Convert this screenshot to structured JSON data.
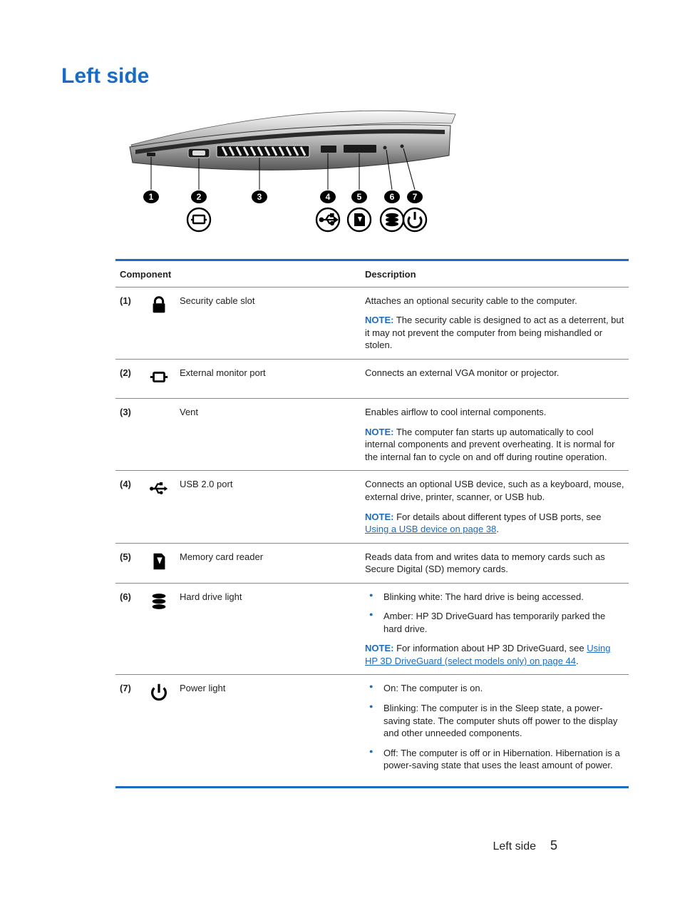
{
  "colors": {
    "heading": "#1a6bc4",
    "note_label": "#1a6bc4",
    "link": "#1a6bc4",
    "table_border_heavy": "#1a6bc4",
    "bullet": "#1a6bc4",
    "text": "#222222"
  },
  "title": "Left side",
  "diagram_callouts": [
    "1",
    "2",
    "3",
    "4",
    "5",
    "6",
    "7"
  ],
  "table": {
    "headers": {
      "component": "Component",
      "description": "Description"
    },
    "rows": [
      {
        "num": "(1)",
        "icon": "lock",
        "name": "Security cable slot",
        "desc": "Attaches an optional security cable to the computer.",
        "note": "The security cable is designed to act as a deterrent, but it may not prevent the computer from being mishandled or stolen."
      },
      {
        "num": "(2)",
        "icon": "monitor",
        "name": "External monitor port",
        "desc": "Connects an external VGA monitor or projector."
      },
      {
        "num": "(3)",
        "icon": "",
        "name": "Vent",
        "desc": "Enables airflow to cool internal components.",
        "note": "The computer fan starts up automatically to cool internal components and prevent overheating. It is normal for the internal fan to cycle on and off during routine operation."
      },
      {
        "num": "(4)",
        "icon": "usb",
        "name": "USB 2.0 port",
        "desc": "Connects an optional USB device, such as a keyboard, mouse, external drive, printer, scanner, or USB hub.",
        "note_pre": "For details about different types of USB ports, see ",
        "note_link": "Using a USB device on page 38",
        "note_post": "."
      },
      {
        "num": "(5)",
        "icon": "sdcard",
        "name": "Memory card reader",
        "desc": "Reads data from and writes data to memory cards such as Secure Digital (SD) memory cards."
      },
      {
        "num": "(6)",
        "icon": "drive",
        "name": "Hard drive light",
        "bullets": [
          "Blinking white: The hard drive is being accessed.",
          "Amber: HP 3D DriveGuard has temporarily parked the hard drive."
        ],
        "note_pre": "For information about HP 3D DriveGuard, see ",
        "note_link": "Using HP 3D DriveGuard (select models only) on page 44",
        "note_post": "."
      },
      {
        "num": "(7)",
        "icon": "power",
        "name": "Power light",
        "bullets": [
          "On: The computer is on.",
          "Blinking: The computer is in the Sleep state, a power-saving state. The computer shuts off power to the display and other unneeded components.",
          "Off: The computer is off or in Hibernation. Hibernation is a power-saving state that uses the least amount of power."
        ]
      }
    ]
  },
  "note_label": "NOTE:",
  "footer": {
    "label": "Left side",
    "page": "5"
  }
}
